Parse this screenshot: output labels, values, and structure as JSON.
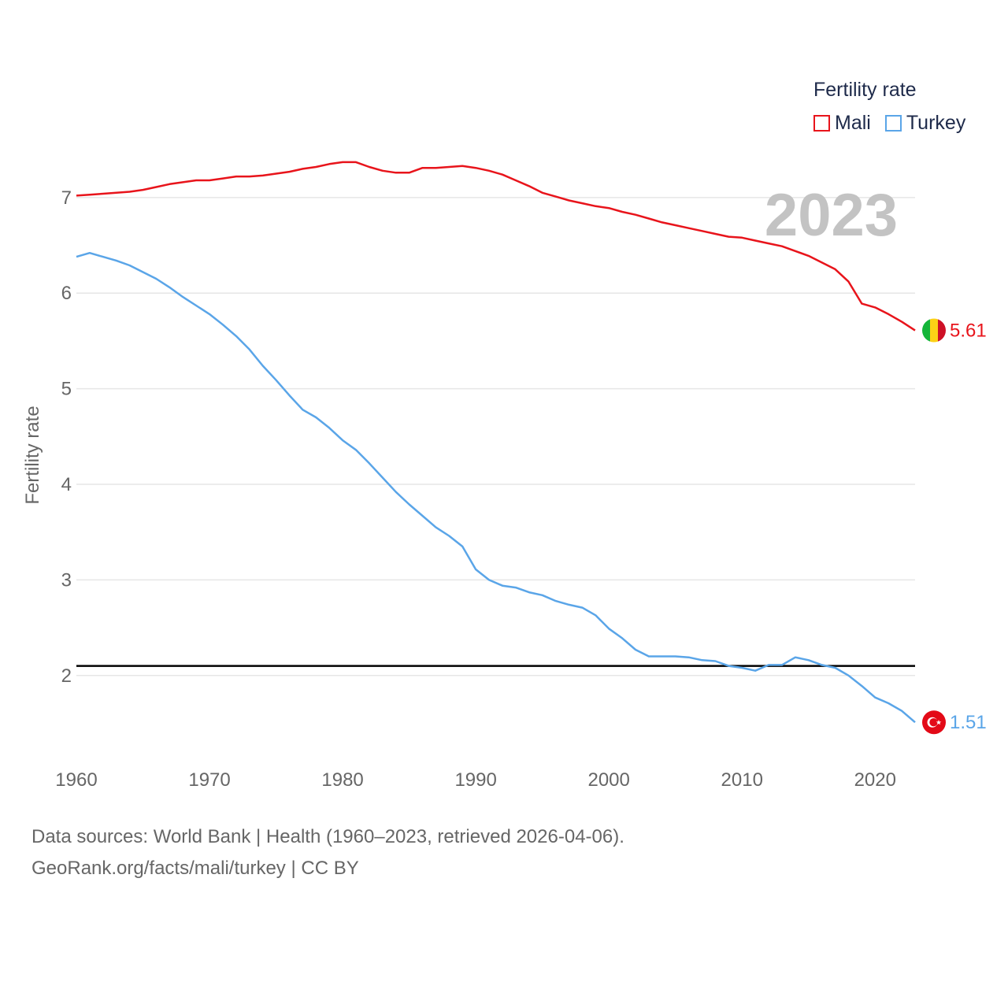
{
  "chart_data": {
    "type": "line",
    "title": "Fertility rate",
    "xlabel": "",
    "ylabel": "Fertility rate",
    "xlim": [
      1960,
      2023
    ],
    "ylim": [
      1.1,
      7.6
    ],
    "x_ticks": [
      1960,
      1970,
      1980,
      1990,
      2000,
      2010,
      2020
    ],
    "y_ticks": [
      2,
      3,
      4,
      5,
      6,
      7
    ],
    "reference_line": 2.1,
    "current_year": "2023",
    "grid": true,
    "legend": "top-right",
    "x": [
      1960,
      1961,
      1962,
      1963,
      1964,
      1965,
      1966,
      1967,
      1968,
      1969,
      1970,
      1971,
      1972,
      1973,
      1974,
      1975,
      1976,
      1977,
      1978,
      1979,
      1980,
      1981,
      1982,
      1983,
      1984,
      1985,
      1986,
      1987,
      1988,
      1989,
      1990,
      1991,
      1992,
      1993,
      1994,
      1995,
      1996,
      1997,
      1998,
      1999,
      2000,
      2001,
      2002,
      2003,
      2004,
      2005,
      2006,
      2007,
      2008,
      2009,
      2010,
      2011,
      2012,
      2013,
      2014,
      2015,
      2016,
      2017,
      2018,
      2019,
      2020,
      2021,
      2022,
      2023
    ],
    "series": [
      {
        "name": "Mali",
        "color": "#e8141b",
        "end_label": "5.61",
        "flag": "mali-flag-icon",
        "values": [
          7.02,
          7.03,
          7.04,
          7.05,
          7.06,
          7.08,
          7.11,
          7.14,
          7.16,
          7.18,
          7.18,
          7.2,
          7.22,
          7.22,
          7.23,
          7.25,
          7.27,
          7.3,
          7.32,
          7.35,
          7.37,
          7.37,
          7.32,
          7.28,
          7.26,
          7.26,
          7.31,
          7.31,
          7.32,
          7.33,
          7.31,
          7.28,
          7.24,
          7.18,
          7.12,
          7.05,
          7.01,
          6.97,
          6.94,
          6.91,
          6.89,
          6.85,
          6.82,
          6.78,
          6.74,
          6.71,
          6.68,
          6.65,
          6.62,
          6.59,
          6.58,
          6.55,
          6.52,
          6.49,
          6.44,
          6.39,
          6.32,
          6.25,
          6.12,
          5.89,
          5.85,
          5.78,
          5.7,
          5.61
        ]
      },
      {
        "name": "Turkey",
        "color": "#5aa5e8",
        "end_label": "1.51",
        "flag": "turkey-flag-icon",
        "values": [
          6.38,
          6.42,
          6.38,
          6.34,
          6.29,
          6.22,
          6.15,
          6.06,
          5.96,
          5.87,
          5.78,
          5.67,
          5.55,
          5.41,
          5.24,
          5.09,
          4.93,
          4.78,
          4.7,
          4.59,
          4.46,
          4.36,
          4.22,
          4.07,
          3.92,
          3.79,
          3.67,
          3.55,
          3.46,
          3.35,
          3.11,
          3.0,
          2.94,
          2.92,
          2.87,
          2.84,
          2.78,
          2.74,
          2.71,
          2.63,
          2.49,
          2.39,
          2.27,
          2.2,
          2.2,
          2.2,
          2.19,
          2.16,
          2.15,
          2.1,
          2.08,
          2.05,
          2.11,
          2.11,
          2.19,
          2.16,
          2.11,
          2.08,
          2.0,
          1.89,
          1.77,
          1.71,
          1.63,
          1.51
        ]
      }
    ]
  },
  "footer": {
    "line1": "Data sources: World Bank | Health (1960–2023, retrieved 2026-04-06).",
    "line2": "GeoRank.org/facts/mali/turkey | CC BY"
  }
}
